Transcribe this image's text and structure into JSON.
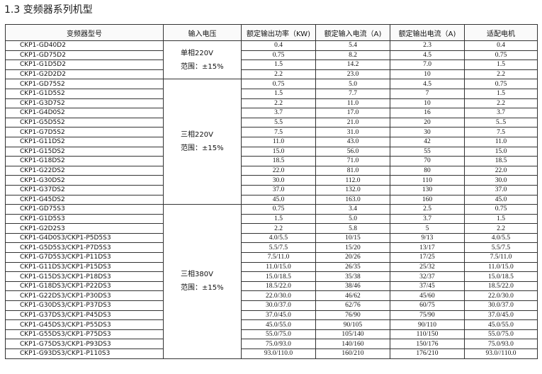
{
  "title": "1.3  变频器系列机型",
  "table": {
    "header": [
      "变频器型号",
      "输入电压",
      "额定输出功率（KW)",
      "额定输入电流（A)",
      "额定输出电流（A)",
      "适配电机"
    ],
    "groups": [
      {
        "voltage": [
          "单相220V",
          "范围：±15%"
        ],
        "rows": [
          [
            "CKP1-GD40D2",
            "0.4",
            "5.4",
            "2.3",
            "0.4"
          ],
          [
            "CKP1-GD75D2",
            "0.75",
            "8.2",
            "4.5",
            "0.75"
          ],
          [
            "CKP1-G1D5D2",
            "1.5",
            "14.2",
            "7.0",
            "1.5"
          ],
          [
            "CKP1-G2D2D2",
            "2.2",
            "23.0",
            "10",
            "2.2"
          ]
        ]
      },
      {
        "voltage": [
          "三相220V",
          "范围：±15%"
        ],
        "rows": [
          [
            "CKP1-GD75S2",
            "0.75",
            "5.0",
            "4.5",
            "0.75"
          ],
          [
            "CKP1-G1D5S2",
            "1.5",
            "7.7",
            "7",
            "1.5"
          ],
          [
            "CKP1-G3D7S2",
            "2.2",
            "11.0",
            "10",
            "2.2"
          ],
          [
            "CKP1-G4D0S2",
            "3.7",
            "17.0",
            "16",
            "3.7"
          ],
          [
            "CKP1-G5D5S2",
            "5.5",
            "21.0",
            "20",
            "5..5"
          ],
          [
            "CKP1-G7D5S2",
            "7.5",
            "31.0",
            "30",
            "7.5"
          ],
          [
            "CKP1-G11DS2",
            "11.0",
            "43.0",
            "42",
            "11.0"
          ],
          [
            "CKP1-G15DS2",
            "15.0",
            "56.0",
            "55",
            "15.0"
          ],
          [
            "CKP1-G18DS2",
            "18.5",
            "71.0",
            "70",
            "18.5"
          ],
          [
            "CKP1-G22DS2",
            "22.0",
            "81.0",
            "80",
            "22.0"
          ],
          [
            "CKP1-G30DS2",
            "30.0",
            "112.0",
            "110",
            "30.0"
          ],
          [
            "CKP1-G37DS2",
            "37.0",
            "132.0",
            "130",
            "37.0"
          ],
          [
            "CKP1-G45DS2",
            "45.0",
            "163.0",
            "160",
            "45.0"
          ]
        ]
      },
      {
        "voltage": [
          "三相380V",
          "范围：±15%"
        ],
        "rows": [
          [
            "CKP1-GD75S3",
            "0.75",
            "3.4",
            "2.5",
            "0.75"
          ],
          [
            "CKP1-G1D5S3",
            "1.5",
            "5.0",
            "3.7",
            "1.5"
          ],
          [
            "CKP1-G2D2S3",
            "2.2",
            "5.8",
            "5",
            "2.2"
          ],
          [
            "CKP1-G4D0S3/CKP1-P5D5S3",
            "4.0/5.5",
            "10/15",
            "9/13",
            "4.0/5.5"
          ],
          [
            "CKP1-G5D5S3/CKP1-P7D5S3",
            "5.5/7.5",
            "15/20",
            "13/17",
            "5.5/7.5"
          ],
          [
            "CKP1-G7D5S3/CKP1-P11DS3",
            "7.5/11.0",
            "20/26",
            "17/25",
            "7.5/11.0"
          ],
          [
            "CKP1-G11DS3/CKP1-P15DS3",
            "11.0/15.0",
            "26/35",
            "25/32",
            "11.0/15.0"
          ],
          [
            "CKP1-G15DS3/CKP1-P18DS3",
            "15.0/18.5",
            "35/38",
            "32/37",
            "15.0/18.5"
          ],
          [
            "CKP1-G18DS3/CKP1-P22DS3",
            "18.5/22.0",
            "38/46",
            "37/45",
            "18.5/22.0"
          ],
          [
            "CKP1-G22DS3/CKP1-P30DS3",
            "22.0/30.0",
            "46/62",
            "45/60",
            "22.0/30.0"
          ],
          [
            "CKP1-G30DS3/CKP1-P37DS3",
            "30.0/37.0",
            "62/76",
            "60/75",
            "30.0/37.0"
          ],
          [
            "CKP1-G37DS3/CKP1-P45DS3",
            "37.0/45.0",
            "76/90",
            "75/90",
            "37.0/45.0"
          ],
          [
            "CKP1-G45DS3/CKP1-P55DS3",
            "45.0/55.0",
            "90/105",
            "90/110",
            "45.0/55.0"
          ],
          [
            "CKP1-G55DS3/CKP1-P75DS3",
            "55.0/75.0",
            "105/140",
            "110/150",
            "55.0/75.0"
          ],
          [
            "CKP1-G75DS3/CKP1-P93DS3",
            "75.0/93.0",
            "140/160",
            "150/176",
            "75.0/93.0"
          ],
          [
            "CKP1-G93DS3/CKP1-P110S3",
            "93.0/110.0",
            "160/210",
            "176/210",
            "93.0//110.0"
          ]
        ]
      }
    ]
  }
}
